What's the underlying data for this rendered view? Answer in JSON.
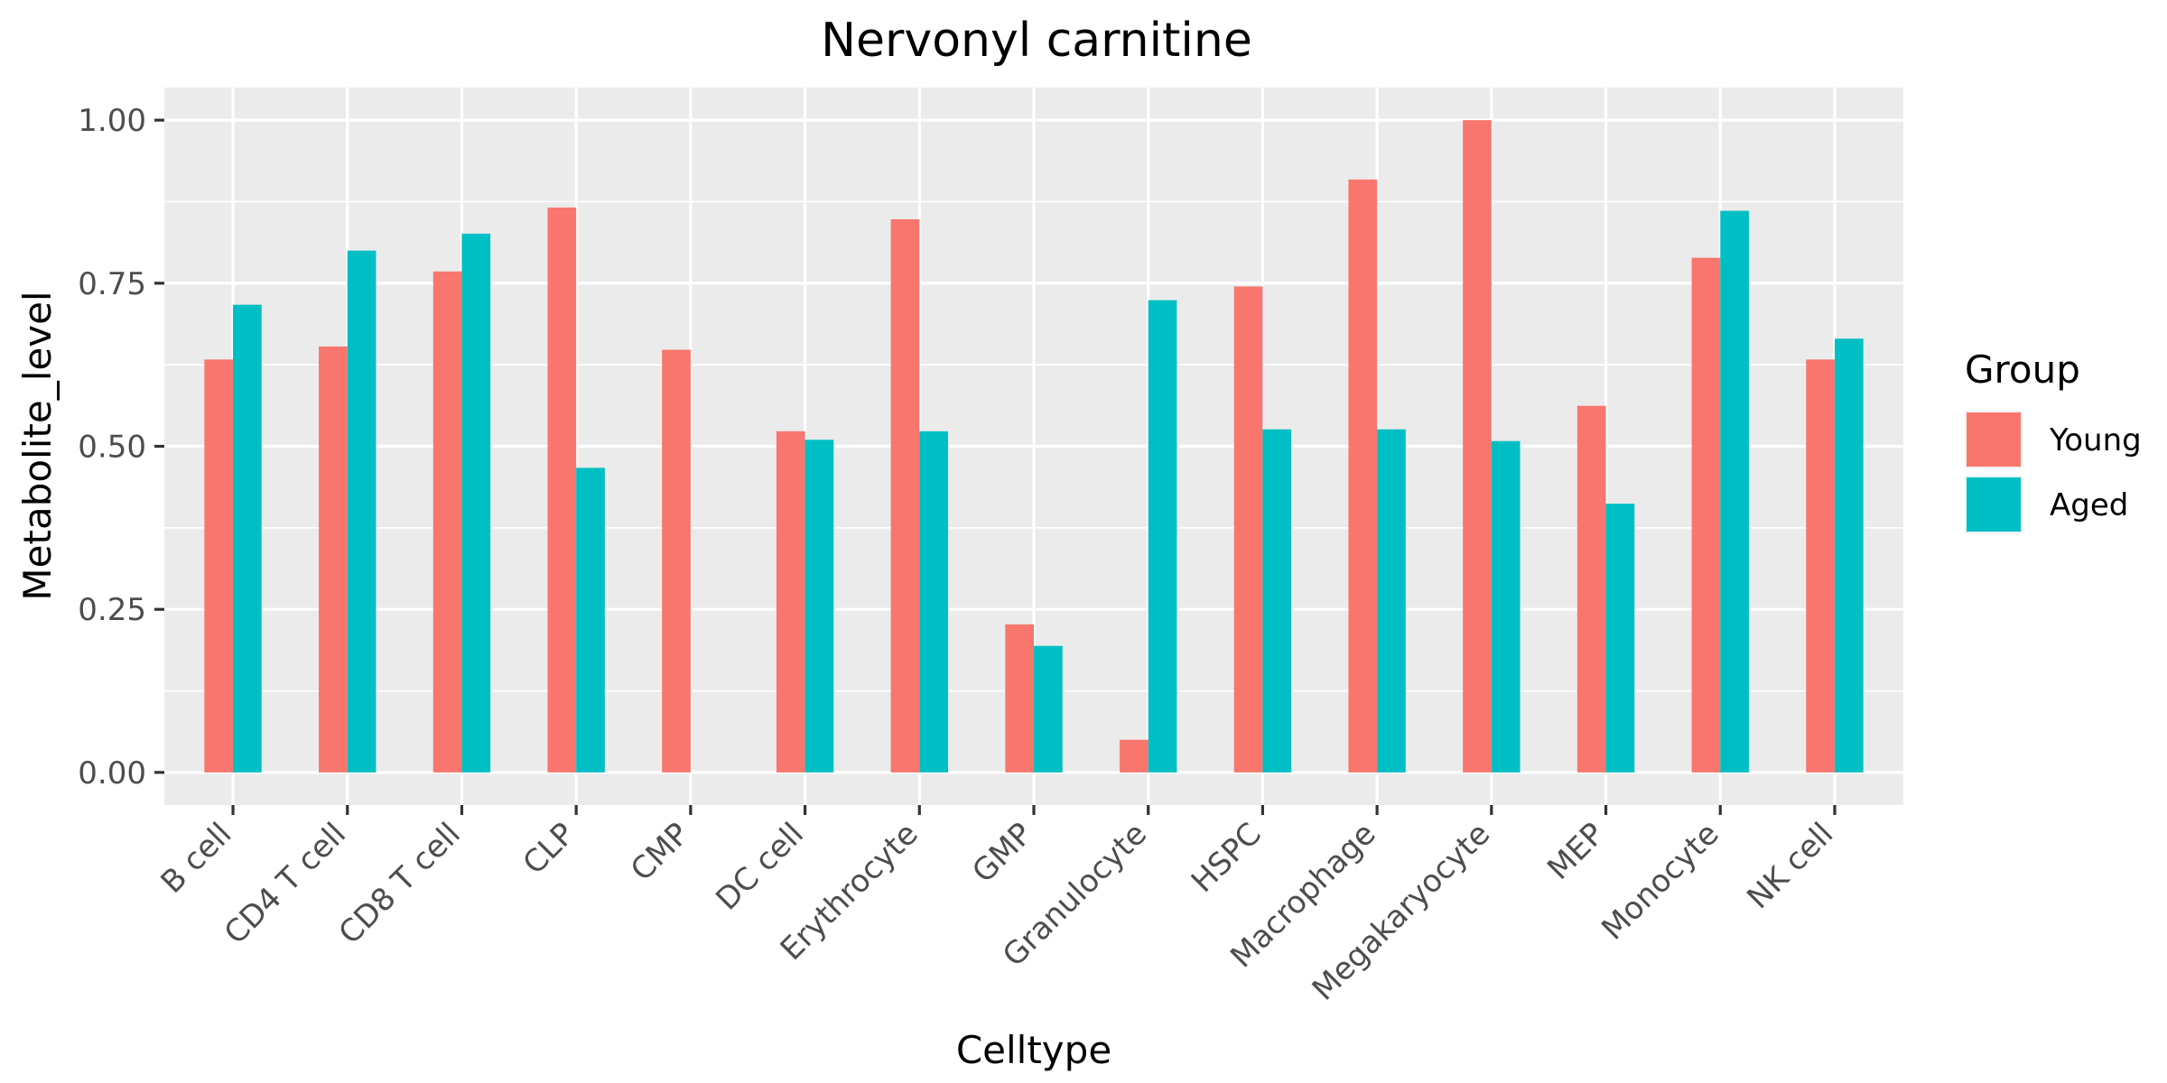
{
  "chart_data": {
    "type": "bar",
    "title": "Nervonyl carnitine",
    "xlabel": "Celltype",
    "ylabel": "Metabolite_level",
    "ylim": [
      -0.05,
      1.05
    ],
    "yticks": [
      0,
      0.25,
      0.5,
      0.75,
      1.0
    ],
    "ytick_labels": [
      "0.00",
      "0.25",
      "0.50",
      "0.75",
      "1.00"
    ],
    "categories": [
      "B cell",
      "CD4 T cell",
      "CD8 T cell",
      "CLP",
      "CMP",
      "DC cell",
      "Erythrocyte",
      "GMP",
      "Granulocyte",
      "HSPC",
      "Macrophage",
      "Megakaryocyte",
      "MEP",
      "Monocyte",
      "NK cell"
    ],
    "series": [
      {
        "name": "Young",
        "color": "#F8766D",
        "values": [
          0.633,
          0.653,
          0.768,
          0.866,
          0.648,
          0.523,
          0.848,
          0.227,
          0.05,
          0.745,
          0.909,
          1.0,
          0.562,
          0.789,
          0.633
        ]
      },
      {
        "name": "Aged",
        "color": "#00BFC4",
        "values": [
          0.717,
          0.8,
          0.826,
          0.467,
          0.0,
          0.51,
          0.523,
          0.194,
          0.724,
          0.526,
          0.526,
          0.508,
          0.412,
          0.861,
          0.665
        ]
      }
    ],
    "legend_title": "Group",
    "legend_position": "right",
    "grid": true,
    "panel_background": "#EBEBEB",
    "grid_color": "#FFFFFF"
  }
}
